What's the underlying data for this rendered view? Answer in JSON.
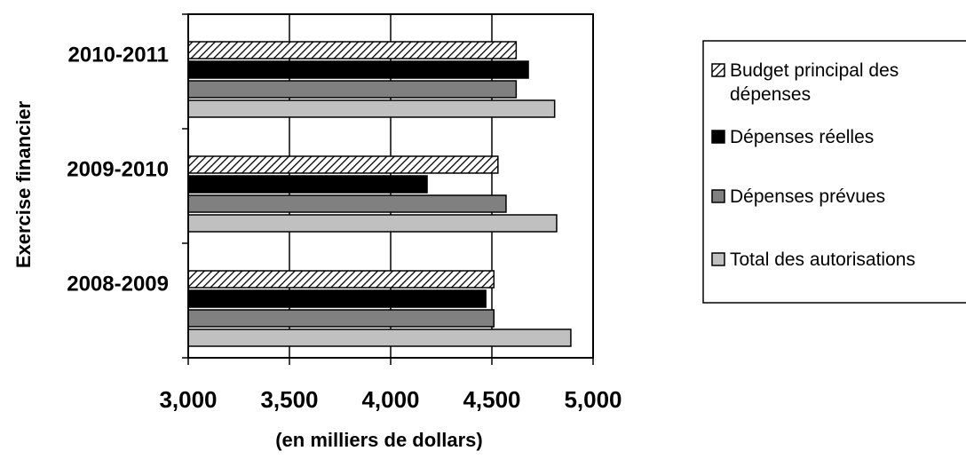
{
  "chart_data": {
    "type": "bar",
    "orientation": "horizontal",
    "title": "",
    "xlabel": "(en milliers de dollars)",
    "ylabel": "Exercise financier",
    "xlim": [
      3000,
      5000
    ],
    "xticks": [
      "3,000",
      "3,500",
      "4,000",
      "4,500",
      "5,000"
    ],
    "xtick_values": [
      3000,
      3500,
      4000,
      4500,
      5000
    ],
    "grid": "vertical",
    "legend_position": "right",
    "categories": [
      "2010-2011",
      "2009-2010",
      "2008-2009"
    ],
    "series": [
      {
        "name": "Budget principal des dépenses",
        "name_lines": [
          "Budget principal des",
          "dépenses"
        ],
        "values": [
          4620,
          4530,
          4510
        ],
        "color": "#ffffff",
        "pattern": "hatch"
      },
      {
        "name": "Dépenses réelles",
        "name_lines": [
          "Dépenses réelles"
        ],
        "values": [
          4680,
          4180,
          4470
        ],
        "color": "#000000",
        "pattern": "solid"
      },
      {
        "name": "Dépenses prévues",
        "name_lines": [
          "Dépenses prévues"
        ],
        "values": [
          4620,
          4570,
          4510
        ],
        "color": "#808080",
        "pattern": "solid"
      },
      {
        "name": "Total des autorisations",
        "name_lines": [
          "Total des autorisations"
        ],
        "values": [
          4810,
          4820,
          4890
        ],
        "color": "#c0c0c0",
        "pattern": "solid"
      }
    ]
  }
}
